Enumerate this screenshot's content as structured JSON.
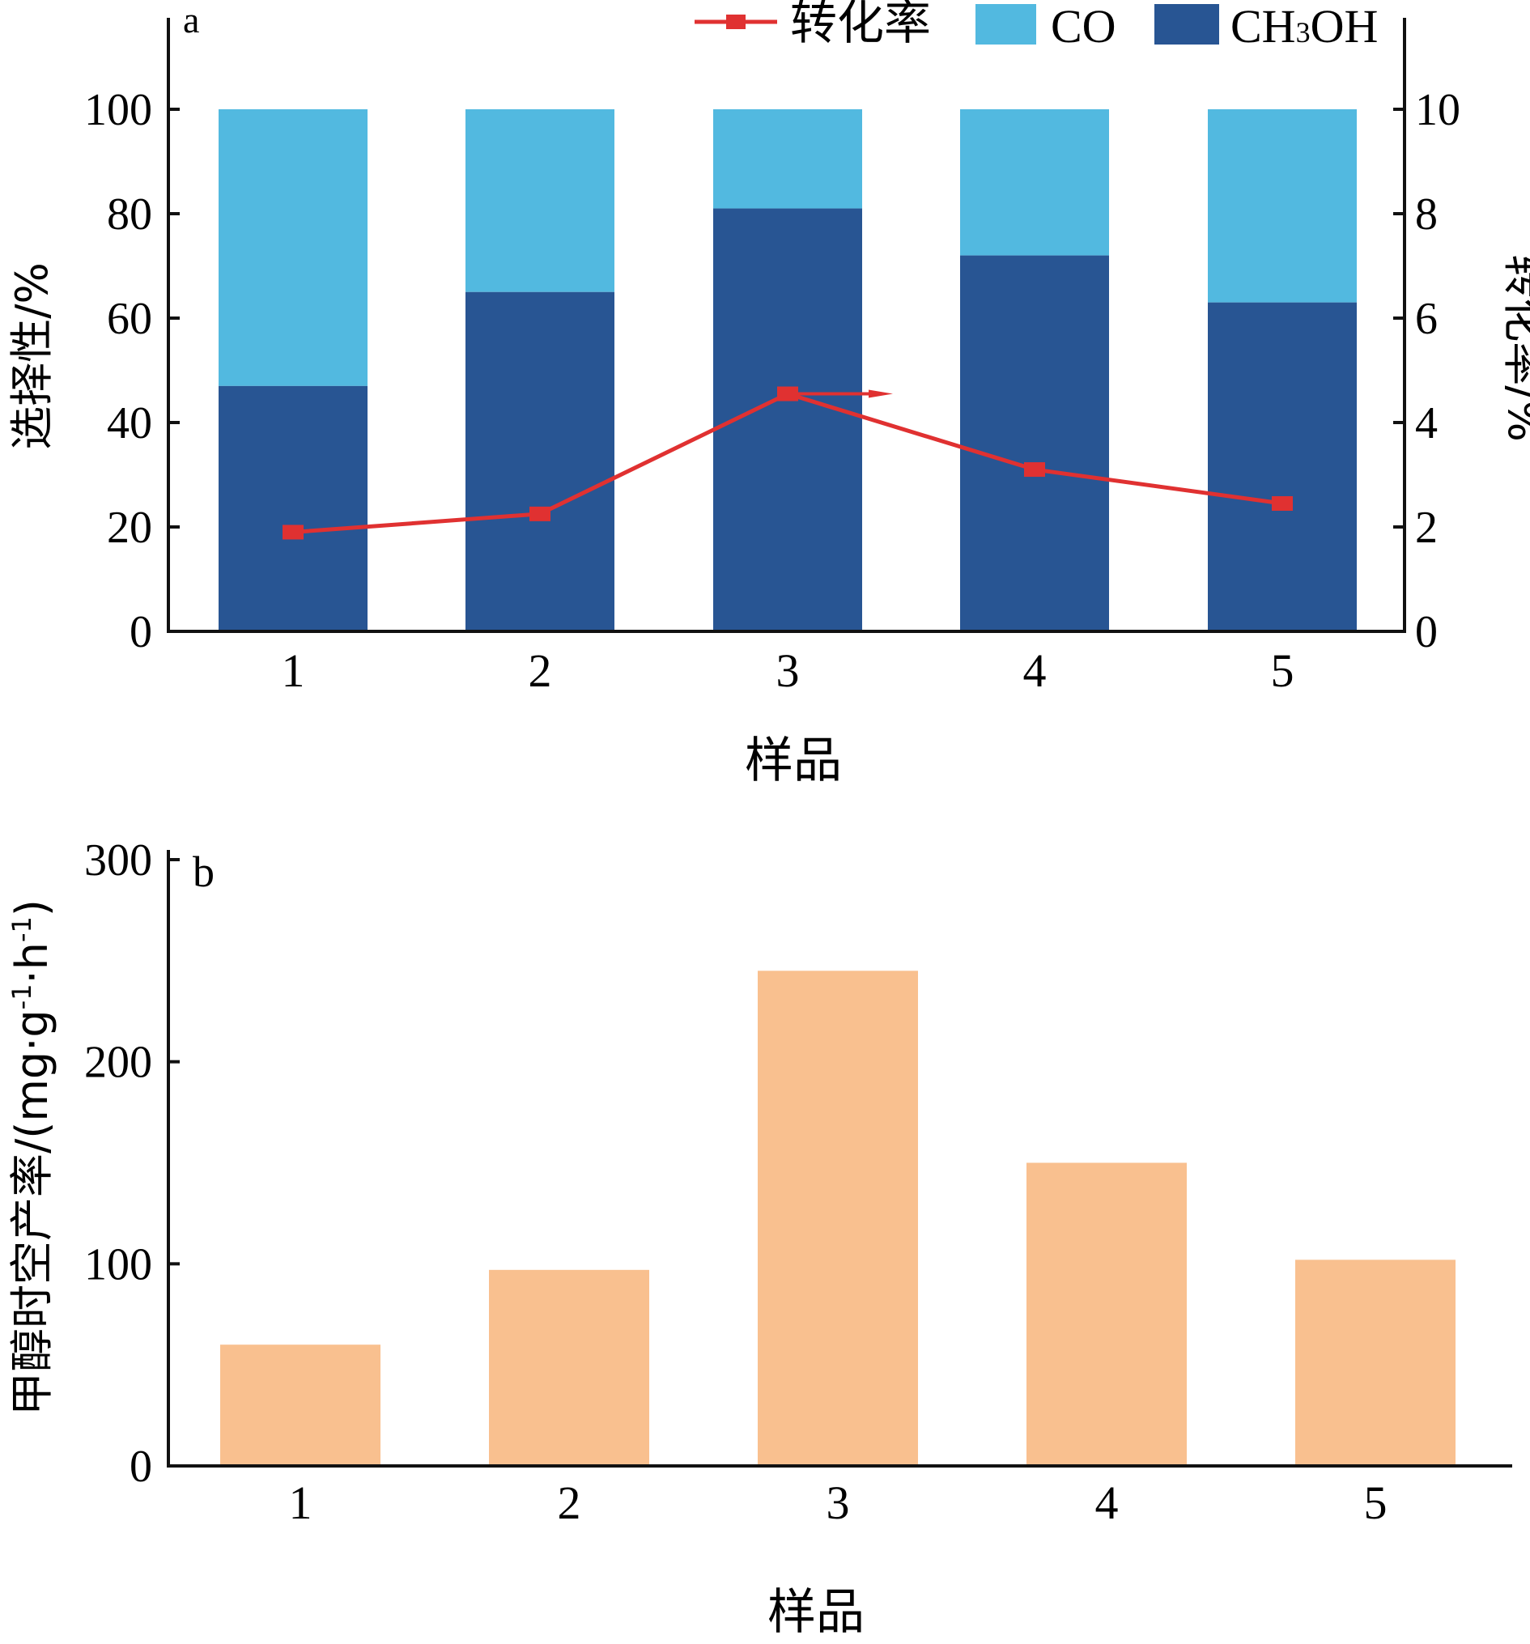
{
  "panel_a": {
    "label": "a",
    "legend": {
      "line_label": "转化率",
      "co_label": "CO",
      "methanol_label_main": "CH",
      "methanol_label_sub": "3",
      "methanol_label_tail": "OH"
    },
    "left_ylabel": "选择性/%",
    "right_ylabel": "转化率/%",
    "xlabel": "样品"
  },
  "panel_b": {
    "label": "b",
    "ylabel": "甲醇时空产率/(mg·g-1·h-1)",
    "ylabel_prefix": "甲醇时空产率/(mg·g",
    "ylabel_sup1": "-1",
    "ylabel_mid": "·h",
    "ylabel_sup2": "-1",
    "ylabel_suffix": ")",
    "xlabel": "样品"
  },
  "colors": {
    "co": "#52b9e0",
    "ch3oh": "#285593",
    "line": "#e03131",
    "orange": "#f9c08f",
    "axis": "#111111"
  },
  "chart_data": [
    {
      "type": "bar",
      "stacked": true,
      "categories": [
        "1",
        "2",
        "3",
        "4",
        "5"
      ],
      "series": [
        {
          "name": "CH3OH",
          "values": [
            47,
            65,
            81,
            72,
            63
          ]
        },
        {
          "name": "CO",
          "values": [
            53,
            35,
            19,
            28,
            37
          ]
        }
      ],
      "ylabel": "选择性/%",
      "ylim": [
        0,
        100
      ],
      "yticks": [
        0,
        20,
        40,
        60,
        80,
        100
      ],
      "xlabel": "样品",
      "secondary": {
        "type": "line",
        "name": "转化率",
        "values": [
          1.9,
          2.25,
          4.55,
          3.1,
          2.45
        ],
        "ylabel": "转化率/%",
        "ylim": [
          0,
          10
        ],
        "yticks": [
          0,
          2,
          4,
          6,
          8,
          10
        ]
      },
      "legend": "top"
    },
    {
      "type": "bar",
      "categories": [
        "1",
        "2",
        "3",
        "4",
        "5"
      ],
      "values": [
        60,
        97,
        245,
        150,
        102
      ],
      "ylabel": "甲醇时空产率/(mg·g-1·h-1)",
      "ylim": [
        0,
        300
      ],
      "yticks": [
        0,
        100,
        200,
        300
      ],
      "xlabel": "样品"
    }
  ]
}
